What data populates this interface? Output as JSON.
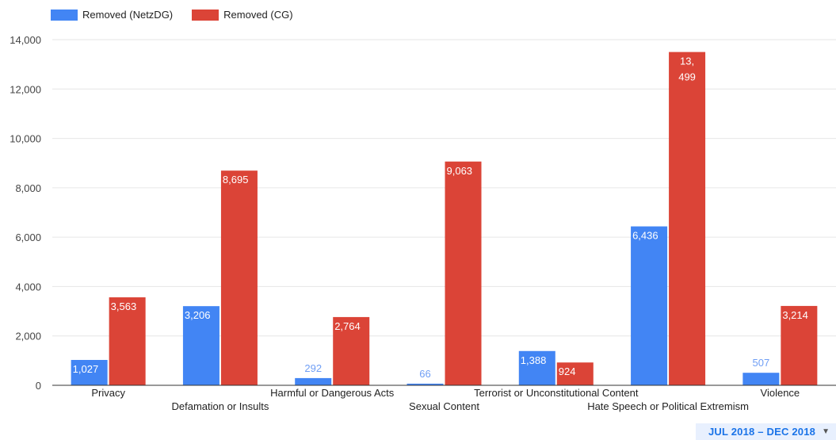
{
  "legend": {
    "netzdg_label": "Removed (NetzDG)",
    "cg_label": "Removed (CG)"
  },
  "colors": {
    "netzdg": "#4285f4",
    "cg": "#db4437",
    "grid": "#e6e6e6",
    "axis": "#333333",
    "label_outside": "#6f9ef5"
  },
  "date_range": {
    "label": "JUL 2018 – DEC 2018"
  },
  "chart_data": {
    "type": "bar",
    "categories": [
      "Privacy",
      "Defamation or Insults",
      "Harmful or Dangerous Acts",
      "Sexual Content",
      "Terrorist or Unconstitutional Content",
      "Hate Speech or Political Extremism",
      "Violence"
    ],
    "series": [
      {
        "name": "Removed (NetzDG)",
        "values": [
          1027,
          3206,
          292,
          66,
          1388,
          6436,
          507
        ],
        "labels": [
          "1,027",
          "3,206",
          "292",
          "66",
          "1,388",
          "6,436",
          "507"
        ]
      },
      {
        "name": "Removed (CG)",
        "values": [
          3563,
          8695,
          2764,
          9063,
          924,
          13499,
          3214
        ],
        "labels": [
          "3,563",
          "8,695",
          "2,764",
          "9,063",
          "924",
          "13,\n499",
          "3,214"
        ]
      }
    ],
    "ylim": [
      0,
      14000
    ],
    "yticks": [
      0,
      2000,
      4000,
      6000,
      8000,
      10000,
      12000,
      14000
    ],
    "ytick_labels": [
      "0",
      "2,000",
      "4,000",
      "6,000",
      "8,000",
      "10,000",
      "12,000",
      "14,000"
    ],
    "grid": true,
    "legend_position": "top-left"
  }
}
